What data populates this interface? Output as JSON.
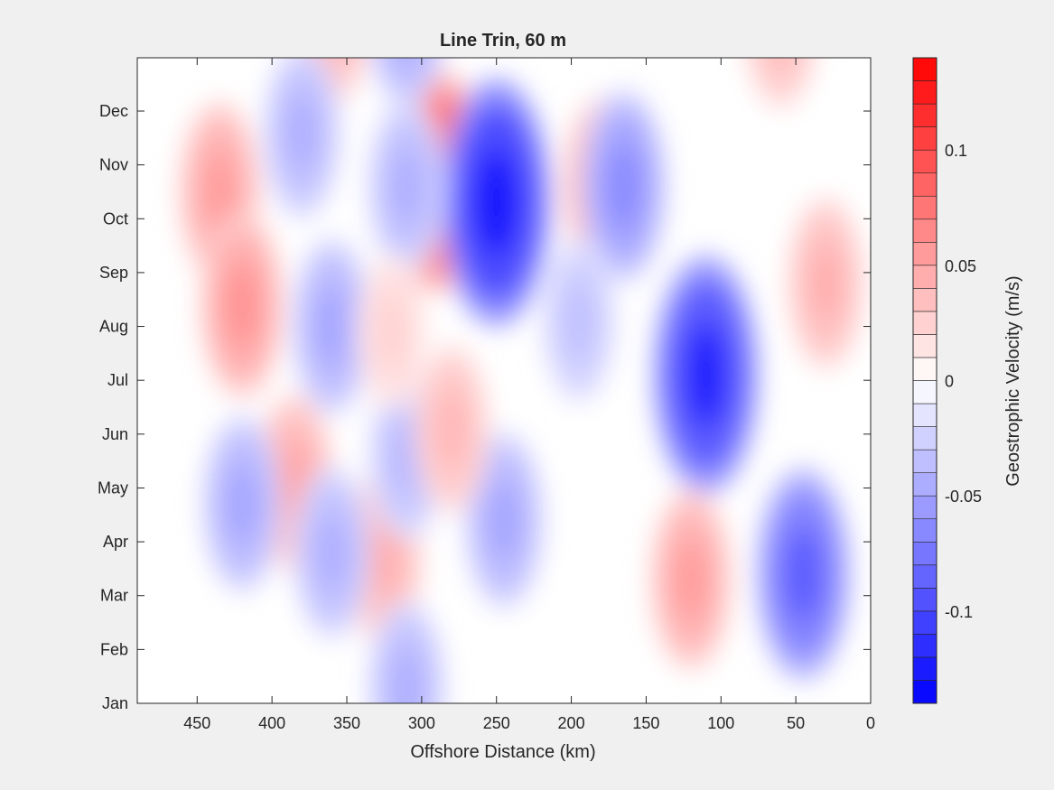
{
  "chart_data": {
    "type": "heatmap",
    "title": "Line Trin, 60 m",
    "xlabel": "Offshore Distance (km)",
    "ylabel": "",
    "x_ticks": [
      450,
      400,
      350,
      300,
      250,
      200,
      150,
      100,
      50,
      0
    ],
    "xlim": [
      490,
      0
    ],
    "x_reversed": true,
    "y_ticks": [
      "Jan",
      "Feb",
      "Mar",
      "Apr",
      "May",
      "Jun",
      "Jul",
      "Aug",
      "Sep",
      "Oct",
      "Nov",
      "Dec"
    ],
    "colorbar": {
      "label": "Geostrophic Velocity (m/s)",
      "ticks": [
        0.1,
        0.05,
        0,
        -0.05,
        -0.1
      ],
      "tick_labels": [
        "0.1",
        "0.05",
        "0",
        "-0.05",
        "-0.1"
      ],
      "range": [
        -0.14,
        0.14
      ],
      "levels": 28,
      "colormap": "blue-white-red",
      "color_min": "#0000ff",
      "color_zero": "#ffffff",
      "color_max": "#ff0000"
    },
    "features": [
      {
        "x": 290,
        "month": 9.7,
        "value": 0.1
      },
      {
        "x": 250,
        "month": 9.3,
        "value": -0.13
      },
      {
        "x": 110,
        "month": 6.1,
        "value": -0.12
      },
      {
        "x": 45,
        "month": 2.4,
        "value": -0.09
      },
      {
        "x": 435,
        "month": 9.5,
        "value": 0.055
      },
      {
        "x": 420,
        "month": 7.4,
        "value": 0.06
      },
      {
        "x": 385,
        "month": 4.1,
        "value": 0.05
      },
      {
        "x": 360,
        "month": 12.7,
        "value": 0.045
      },
      {
        "x": 325,
        "month": 2.7,
        "value": 0.045
      },
      {
        "x": 180,
        "month": 9.6,
        "value": 0.05
      },
      {
        "x": 120,
        "month": 2.3,
        "value": 0.055
      },
      {
        "x": 60,
        "month": 12.6,
        "value": 0.04
      },
      {
        "x": 30,
        "month": 7.8,
        "value": 0.045
      },
      {
        "x": 380,
        "month": 10.6,
        "value": -0.045
      },
      {
        "x": 360,
        "month": 7.0,
        "value": -0.05
      },
      {
        "x": 310,
        "month": 12.7,
        "value": -0.05
      },
      {
        "x": 310,
        "month": 9.6,
        "value": -0.045
      },
      {
        "x": 420,
        "month": 3.7,
        "value": -0.05
      },
      {
        "x": 360,
        "month": 2.8,
        "value": -0.045
      },
      {
        "x": 245,
        "month": 3.4,
        "value": -0.05
      },
      {
        "x": 165,
        "month": 9.6,
        "value": -0.065
      },
      {
        "x": 310,
        "month": 4.6,
        "value": -0.04
      },
      {
        "x": 310,
        "month": 0.3,
        "value": -0.045
      },
      {
        "x": 195,
        "month": 7.1,
        "value": -0.035
      },
      {
        "x": 280,
        "month": 5.1,
        "value": 0.04
      },
      {
        "x": 320,
        "month": 6.9,
        "value": 0.025
      }
    ]
  }
}
